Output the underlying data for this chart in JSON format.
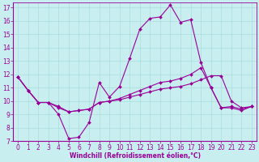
{
  "xlabel": "Windchill (Refroidissement éolien,°C)",
  "background_color": "#c8eef0",
  "line_color": "#990099",
  "xlim": [
    -0.5,
    23.5
  ],
  "ylim": [
    7,
    17.4
  ],
  "yticks": [
    7,
    8,
    9,
    10,
    11,
    12,
    13,
    14,
    15,
    16,
    17
  ],
  "xticks": [
    0,
    1,
    2,
    3,
    4,
    5,
    6,
    7,
    8,
    9,
    10,
    11,
    12,
    13,
    14,
    15,
    16,
    17,
    18,
    19,
    20,
    21,
    22,
    23
  ],
  "line1_x": [
    0,
    1,
    2,
    3,
    4,
    5,
    6,
    7,
    8,
    9,
    10,
    11,
    12,
    13,
    14,
    15,
    16,
    17,
    18,
    19,
    20,
    21,
    22,
    23
  ],
  "line1_y": [
    11.8,
    10.8,
    9.9,
    9.9,
    9.0,
    7.2,
    7.3,
    8.4,
    11.4,
    10.3,
    11.1,
    13.2,
    15.4,
    16.2,
    16.3,
    17.2,
    15.9,
    16.1,
    12.9,
    11.0,
    9.5,
    9.5,
    9.3,
    9.6
  ],
  "line2_x": [
    0,
    1,
    2,
    3,
    4,
    5,
    6,
    7,
    8,
    9,
    10,
    11,
    12,
    13,
    14,
    15,
    16,
    17,
    18,
    19,
    20,
    21,
    22,
    23
  ],
  "line2_y": [
    11.8,
    10.8,
    9.9,
    9.9,
    9.5,
    9.2,
    9.3,
    9.4,
    9.9,
    10.0,
    10.2,
    10.5,
    10.8,
    11.1,
    11.4,
    11.5,
    11.7,
    12.0,
    12.5,
    11.0,
    9.5,
    9.6,
    9.4,
    9.6
  ],
  "line3_x": [
    0,
    1,
    2,
    3,
    4,
    5,
    6,
    7,
    8,
    9,
    10,
    11,
    12,
    13,
    14,
    15,
    16,
    17,
    18,
    19,
    20,
    21,
    22,
    23
  ],
  "line3_y": [
    11.8,
    10.8,
    9.9,
    9.9,
    9.6,
    9.2,
    9.3,
    9.4,
    9.9,
    10.0,
    10.1,
    10.3,
    10.5,
    10.7,
    10.9,
    11.0,
    11.1,
    11.3,
    11.6,
    11.9,
    11.9,
    10.0,
    9.5,
    9.6
  ],
  "grid_color": "#aadddd",
  "font_color": "#990099",
  "marker": "D",
  "marker_size": 2.0,
  "linewidth": 0.8,
  "tick_fontsize": 5.5,
  "xlabel_fontsize": 5.5
}
